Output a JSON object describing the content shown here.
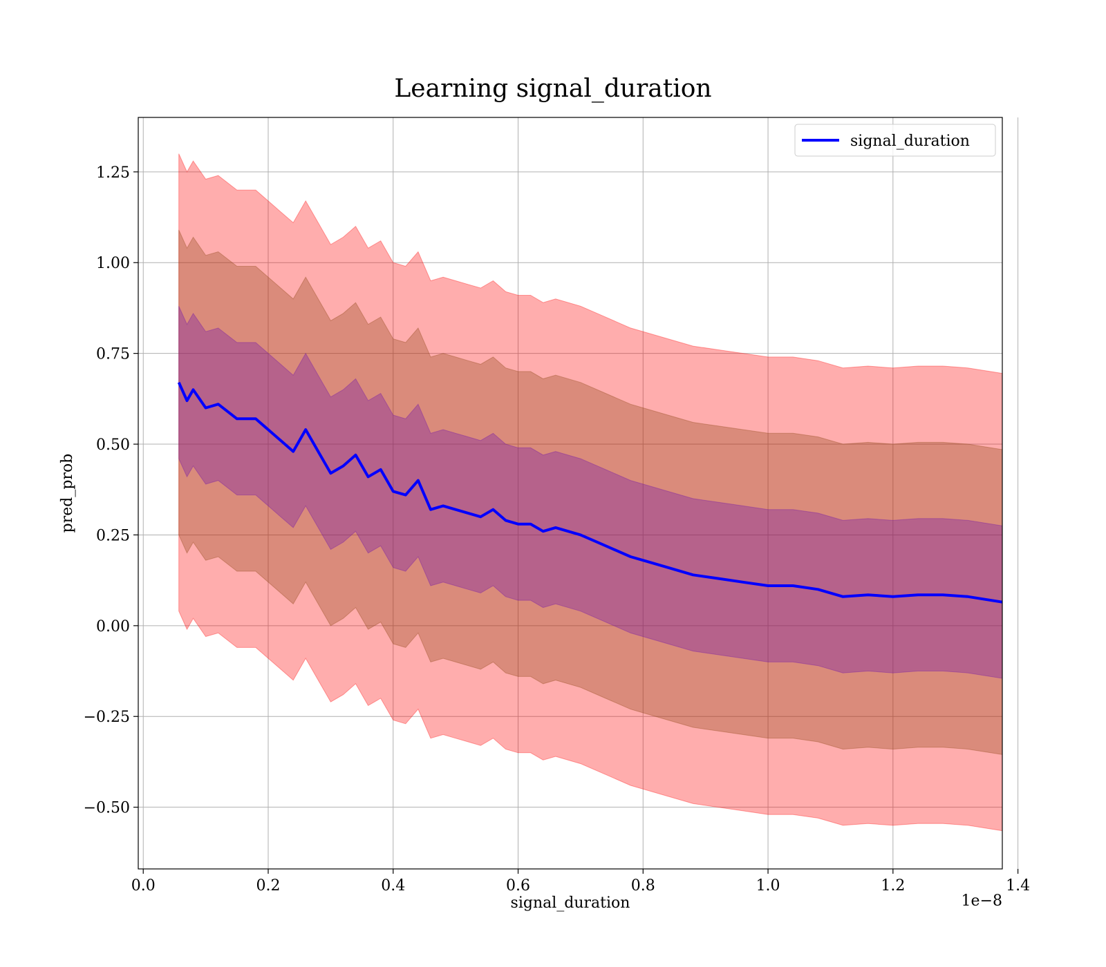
{
  "chart_data": {
    "type": "line",
    "title": "Learning signal_duration",
    "xlabel": "signal_duration",
    "ylabel": "pred_prob",
    "x_offset_label": "1e−8",
    "xlim": [
      -0.008,
      1.375
    ],
    "ylim": [
      -0.67,
      1.4
    ],
    "xticks": [
      0.0,
      0.2,
      0.4,
      0.6,
      0.8,
      1.0,
      1.2,
      1.4
    ],
    "xtick_labels": [
      "0.0",
      "0.2",
      "0.4",
      "0.6",
      "0.8",
      "1.0",
      "1.2",
      "1.4"
    ],
    "yticks": [
      -0.5,
      -0.25,
      0.0,
      0.25,
      0.5,
      0.75,
      1.0,
      1.25
    ],
    "ytick_labels": [
      "−0.50",
      "−0.25",
      "0.00",
      "0.25",
      "0.50",
      "0.75",
      "1.00",
      "1.25"
    ],
    "grid": true,
    "legend_position": "top-right",
    "colors": {
      "line": "#0000ff",
      "band_outer": "#ff0000",
      "band_middle": "#8b4513",
      "band_inner": "#6a0dad"
    },
    "x": [
      0.057,
      0.07,
      0.08,
      0.1,
      0.12,
      0.15,
      0.18,
      0.2,
      0.22,
      0.24,
      0.26,
      0.28,
      0.3,
      0.32,
      0.34,
      0.36,
      0.38,
      0.4,
      0.42,
      0.44,
      0.46,
      0.48,
      0.5,
      0.52,
      0.54,
      0.56,
      0.58,
      0.6,
      0.62,
      0.64,
      0.66,
      0.7,
      0.74,
      0.78,
      0.8,
      0.84,
      0.88,
      0.92,
      0.96,
      1.0,
      1.04,
      1.08,
      1.12,
      1.16,
      1.2,
      1.24,
      1.28,
      1.32,
      1.375
    ],
    "series": [
      {
        "name": "signal_duration",
        "values": [
          0.67,
          0.62,
          0.65,
          0.6,
          0.61,
          0.57,
          0.57,
          0.54,
          0.51,
          0.48,
          0.54,
          0.48,
          0.42,
          0.44,
          0.47,
          0.41,
          0.43,
          0.37,
          0.36,
          0.4,
          0.32,
          0.33,
          0.32,
          0.31,
          0.3,
          0.32,
          0.29,
          0.28,
          0.28,
          0.26,
          0.27,
          0.25,
          0.22,
          0.19,
          0.18,
          0.16,
          0.14,
          0.13,
          0.12,
          0.11,
          0.11,
          0.1,
          0.08,
          0.085,
          0.08,
          0.085,
          0.085,
          0.08,
          0.065
        ]
      }
    ],
    "bands": [
      {
        "offset_sd": 3,
        "color": "band_outer",
        "upper_shift": 0.0,
        "lower_shift": 0.0
      },
      {
        "offset_sd": 2,
        "color": "band_middle",
        "upper_shift": 0.0,
        "lower_shift": 0.0
      },
      {
        "offset_sd": 1,
        "color": "band_inner",
        "upper_shift": 0.0,
        "lower_shift": 0.0
      }
    ],
    "sd": [
      0.21,
      0.21,
      0.21,
      0.21,
      0.21,
      0.21,
      0.21,
      0.21,
      0.21,
      0.21,
      0.21,
      0.21,
      0.21,
      0.21,
      0.21,
      0.21,
      0.21,
      0.21,
      0.21,
      0.21,
      0.21,
      0.21,
      0.21,
      0.21,
      0.21,
      0.21,
      0.21,
      0.21,
      0.21,
      0.21,
      0.21,
      0.21,
      0.21,
      0.21,
      0.21,
      0.21,
      0.21,
      0.21,
      0.21,
      0.21,
      0.21,
      0.21,
      0.21,
      0.21,
      0.21,
      0.21,
      0.21,
      0.21,
      0.21
    ]
  }
}
